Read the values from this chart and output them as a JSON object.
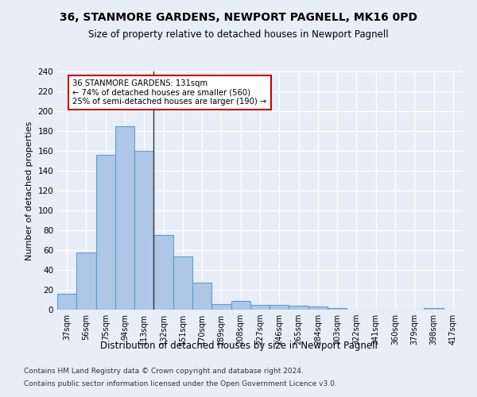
{
  "title": "36, STANMORE GARDENS, NEWPORT PAGNELL, MK16 0PD",
  "subtitle": "Size of property relative to detached houses in Newport Pagnell",
  "xlabel": "Distribution of detached houses by size in Newport Pagnell",
  "ylabel": "Number of detached properties",
  "categories": [
    "37sqm",
    "56sqm",
    "75sqm",
    "94sqm",
    "113sqm",
    "132sqm",
    "151sqm",
    "170sqm",
    "189sqm",
    "208sqm",
    "227sqm",
    "246sqm",
    "265sqm",
    "284sqm",
    "303sqm",
    "322sqm",
    "341sqm",
    "360sqm",
    "379sqm",
    "398sqm",
    "417sqm"
  ],
  "values": [
    16,
    58,
    156,
    185,
    160,
    75,
    54,
    27,
    6,
    9,
    5,
    5,
    4,
    3,
    2,
    0,
    0,
    0,
    0,
    2,
    0
  ],
  "bar_color": "#aec6e8",
  "bar_edge_color": "#5a9fd4",
  "vline_x_index": 4,
  "vline_color": "#333333",
  "annotation_text": "36 STANMORE GARDENS: 131sqm\n← 74% of detached houses are smaller (560)\n25% of semi-detached houses are larger (190) →",
  "annotation_box_color": "#ffffff",
  "annotation_box_edge_color": "#cc0000",
  "ylim": [
    0,
    240
  ],
  "yticks": [
    0,
    20,
    40,
    60,
    80,
    100,
    120,
    140,
    160,
    180,
    200,
    220,
    240
  ],
  "background_color": "#e8eef8",
  "grid_color": "#ffffff",
  "footer1": "Contains HM Land Registry data © Crown copyright and database right 2024.",
  "footer2": "Contains public sector information licensed under the Open Government Licence v3.0."
}
